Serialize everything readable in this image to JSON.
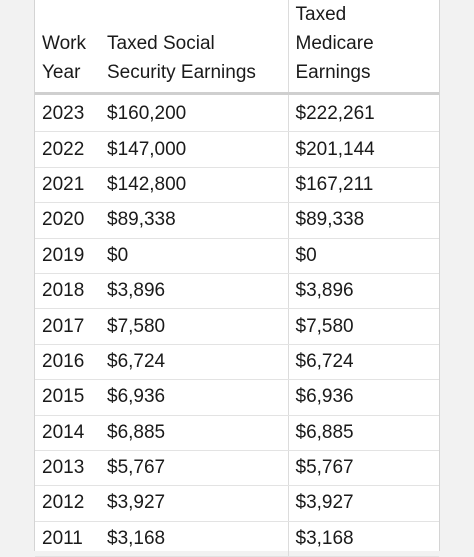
{
  "table": {
    "headers": {
      "year": [
        "Work",
        "Year"
      ],
      "social": [
        "Taxed Social",
        "Security Earnings"
      ],
      "medicare": [
        "Taxed",
        "Medicare",
        "Earnings"
      ]
    },
    "rows": [
      {
        "year": "2023",
        "social": "$160,200",
        "medicare": "$222,261"
      },
      {
        "year": "2022",
        "social": "$147,000",
        "medicare": "$201,144"
      },
      {
        "year": "2021",
        "social": "$142,800",
        "medicare": "$167,211"
      },
      {
        "year": "2020",
        "social": "$89,338",
        "medicare": "$89,338"
      },
      {
        "year": "2019",
        "social": "$0",
        "medicare": "$0"
      },
      {
        "year": "2018",
        "social": "$3,896",
        "medicare": "$3,896"
      },
      {
        "year": "2017",
        "social": "$7,580",
        "medicare": "$7,580"
      },
      {
        "year": "2016",
        "social": "$6,724",
        "medicare": "$6,724"
      },
      {
        "year": "2015",
        "social": "$6,936",
        "medicare": "$6,936"
      },
      {
        "year": "2014",
        "social": "$6,885",
        "medicare": "$6,885"
      },
      {
        "year": "2013",
        "social": "$5,767",
        "medicare": "$5,767"
      },
      {
        "year": "2012",
        "social": "$3,927",
        "medicare": "$3,927"
      },
      {
        "year": "2011",
        "social": "$3,168",
        "medicare": "$3,168"
      }
    ]
  }
}
